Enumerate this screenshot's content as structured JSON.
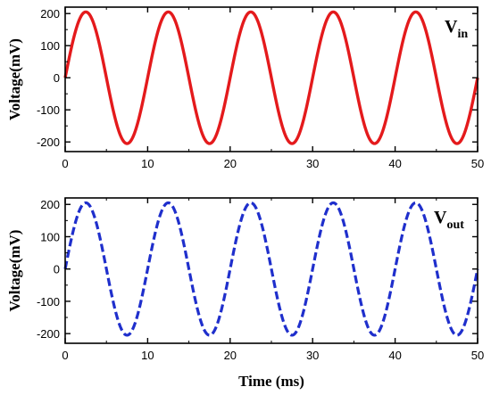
{
  "chart_data": [
    {
      "type": "line",
      "xlabel": "",
      "ylabel": "Voltage(mV)",
      "xlim": [
        0,
        50
      ],
      "ylim": [
        -230,
        220
      ],
      "xticks": [
        "0",
        "10",
        "20",
        "30",
        "40",
        "50"
      ],
      "yticks": [
        "-200",
        "-100",
        "0",
        "100",
        "200"
      ],
      "legend": {
        "main": "V",
        "sub": "in",
        "position": "top-right"
      },
      "series": [
        {
          "name": "Vin",
          "color": "#e41a1c",
          "style": "solid",
          "amplitude_mV": 205,
          "period_ms": 10,
          "x": [
            0,
            2.5,
            5,
            7.5,
            10,
            12.5,
            15,
            17.5,
            20,
            22.5,
            25,
            27.5,
            30,
            32.5,
            35,
            37.5,
            40,
            42.5,
            45,
            47.5,
            50
          ],
          "y": [
            0,
            205,
            0,
            -205,
            0,
            205,
            0,
            -205,
            0,
            205,
            0,
            -205,
            0,
            205,
            0,
            -205,
            0,
            205,
            0,
            -205,
            0
          ]
        }
      ]
    },
    {
      "type": "line",
      "xlabel": "Time (ms)",
      "ylabel": "Voltage(mV)",
      "xlim": [
        0,
        50
      ],
      "ylim": [
        -230,
        220
      ],
      "xticks": [
        "0",
        "10",
        "20",
        "30",
        "40",
        "50"
      ],
      "yticks": [
        "-200",
        "-100",
        "0",
        "100",
        "200"
      ],
      "legend": {
        "main": "V",
        "sub": "out",
        "position": "top-right"
      },
      "series": [
        {
          "name": "Vout",
          "color": "#1f2fcc",
          "style": "dashed",
          "amplitude_mV": 205,
          "period_ms": 10,
          "x": [
            0,
            2.5,
            5,
            7.5,
            10,
            12.5,
            15,
            17.5,
            20,
            22.5,
            25,
            27.5,
            30,
            32.5,
            35,
            37.5,
            40,
            42.5,
            45,
            47.5,
            50
          ],
          "y": [
            0,
            205,
            0,
            -205,
            0,
            205,
            0,
            -205,
            0,
            205,
            0,
            -205,
            0,
            205,
            0,
            -205,
            0,
            205,
            0,
            -205,
            0
          ]
        }
      ]
    }
  ]
}
